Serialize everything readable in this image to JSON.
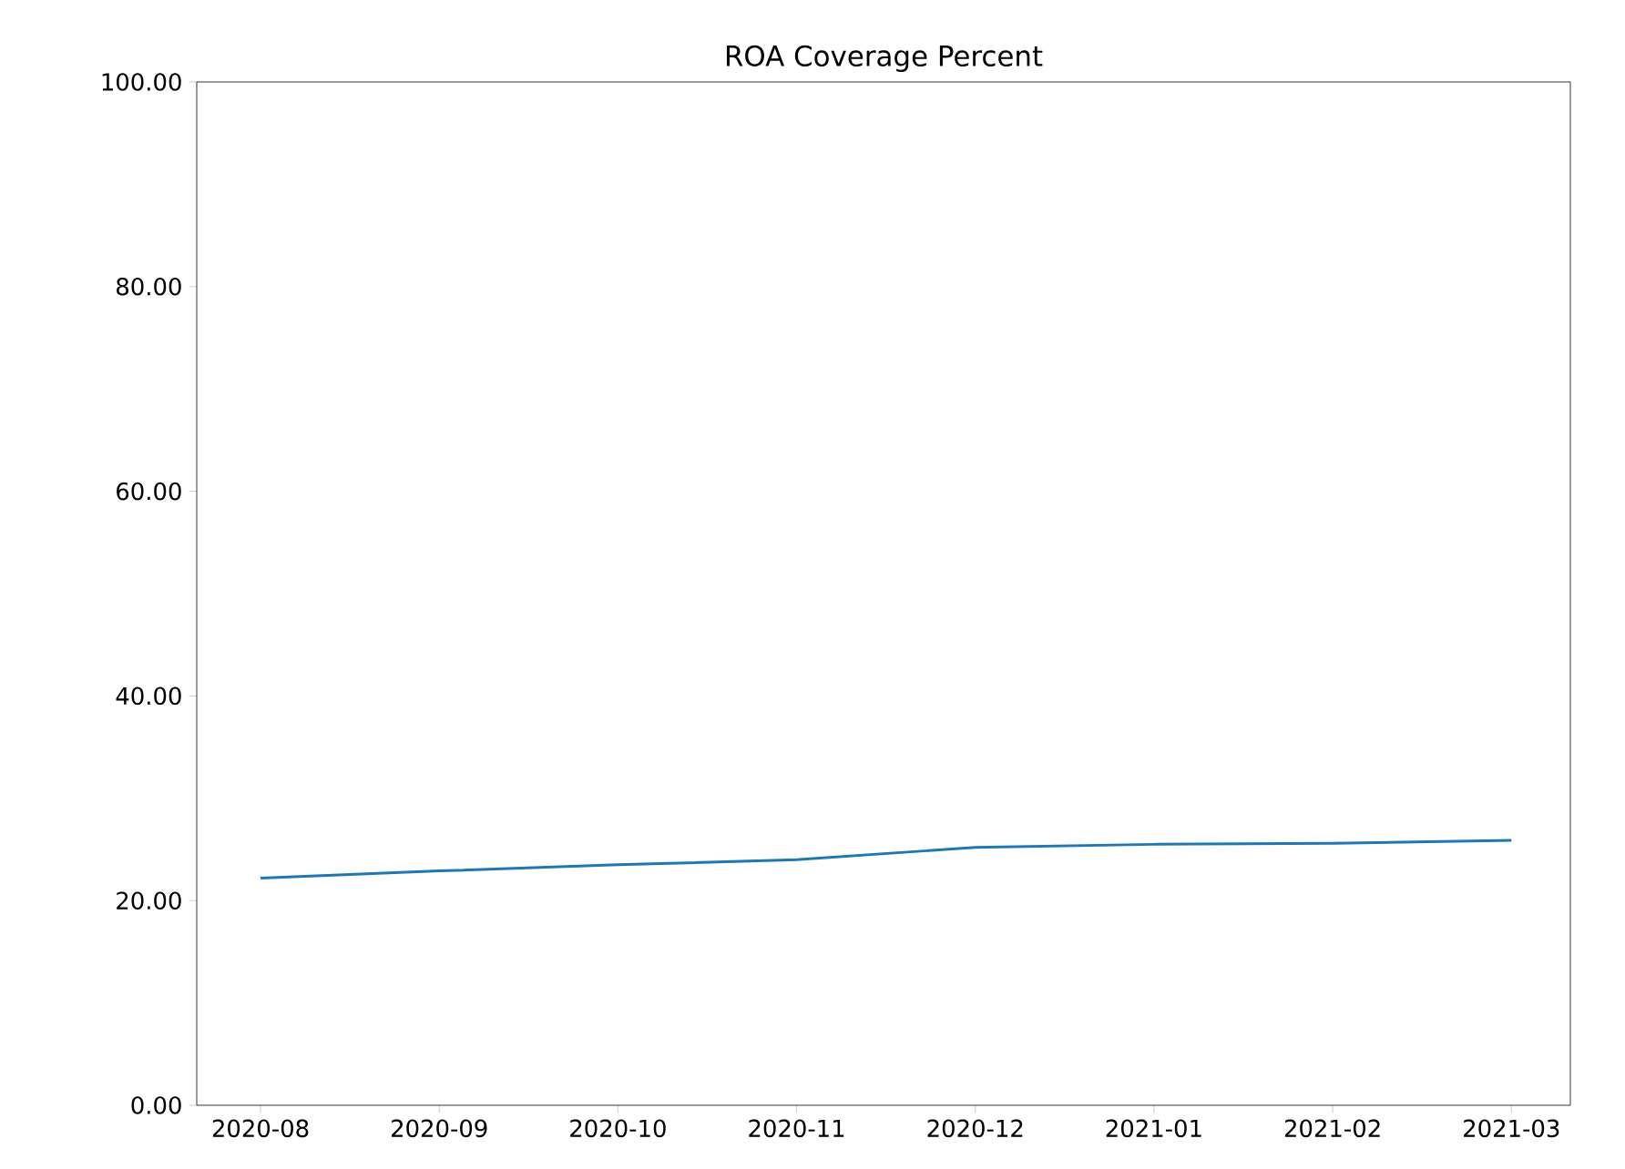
{
  "chart_data": {
    "type": "line",
    "title": "ROA Coverage Percent",
    "categories": [
      "2020-08",
      "2020-09",
      "2020-10",
      "2020-11",
      "2020-12",
      "2021-01",
      "2021-02",
      "2021-03"
    ],
    "series": [
      {
        "color": "#1f77b4",
        "values": [
          22.2,
          22.9,
          23.5,
          24.0,
          25.2,
          25.5,
          25.6,
          25.9
        ]
      }
    ],
    "ylim": [
      0,
      100
    ],
    "yticks": [
      {
        "value": 0,
        "label": "0.00"
      },
      {
        "value": 20,
        "label": "20.00"
      },
      {
        "value": 40,
        "label": "40.00"
      },
      {
        "value": 60,
        "label": "60.00"
      },
      {
        "value": 80,
        "label": "80.00"
      },
      {
        "value": 100,
        "label": "100.00"
      }
    ],
    "grid": false,
    "legend": false,
    "marker": "none",
    "line_style": "solid"
  }
}
